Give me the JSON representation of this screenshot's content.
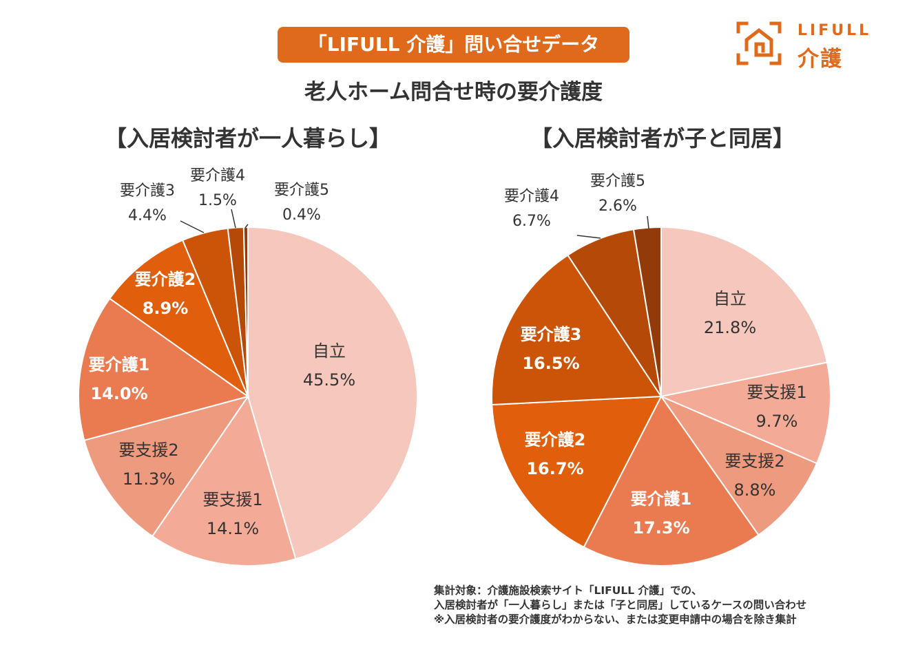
{
  "banner": "「LIFULL 介護」問い合せデータ",
  "subtitle": "老人ホーム問合せ時の要介護度",
  "logo": {
    "line1": "LIFULL",
    "line2": "介護",
    "brand_color": "#e06a1c"
  },
  "chart_data": [
    {
      "type": "pie",
      "title": "【入居検討者が一人暮らし】",
      "categories": [
        "自立",
        "要支援1",
        "要支援2",
        "要介護1",
        "要介護2",
        "要介護3",
        "要介護4",
        "要介護5"
      ],
      "values": [
        45.5,
        14.1,
        11.3,
        14.0,
        8.9,
        4.4,
        1.5,
        0.4
      ],
      "value_labels": [
        "45.5%",
        "14.1%",
        "11.3%",
        "14.0%",
        "8.9%",
        "4.4%",
        "1.5%",
        "0.4%"
      ],
      "colors": [
        "#f6c7bc",
        "#f3ab97",
        "#ee9a7f",
        "#ea7a50",
        "#e05e0c",
        "#cc5408",
        "#b54a08",
        "#933a0a"
      ]
    },
    {
      "type": "pie",
      "title": "【入居検討者が子と同居】",
      "categories": [
        "自立",
        "要支援1",
        "要支援2",
        "要介護1",
        "要介護2",
        "要介護3",
        "要介護4",
        "要介護5"
      ],
      "values": [
        21.8,
        9.7,
        8.8,
        17.3,
        16.7,
        16.5,
        6.7,
        2.6
      ],
      "value_labels": [
        "21.8%",
        "9.7%",
        "8.8%",
        "17.3%",
        "16.7%",
        "16.5%",
        "6.7%",
        "2.6%"
      ],
      "colors": [
        "#f6c7bc",
        "#f3ab97",
        "#ee9a7f",
        "#ea7a50",
        "#e05e0c",
        "#cc5408",
        "#b54a08",
        "#933a0a"
      ]
    }
  ],
  "footnote": [
    "集計対象：介護施設検索サイト「LIFULL 介護」での、",
    "入居検討者が「一人暮らし」または「子と同居」しているケースの問い合わせ",
    "※入居検討者の要介護度がわからない、または変更申請中の場合を除き集計"
  ]
}
